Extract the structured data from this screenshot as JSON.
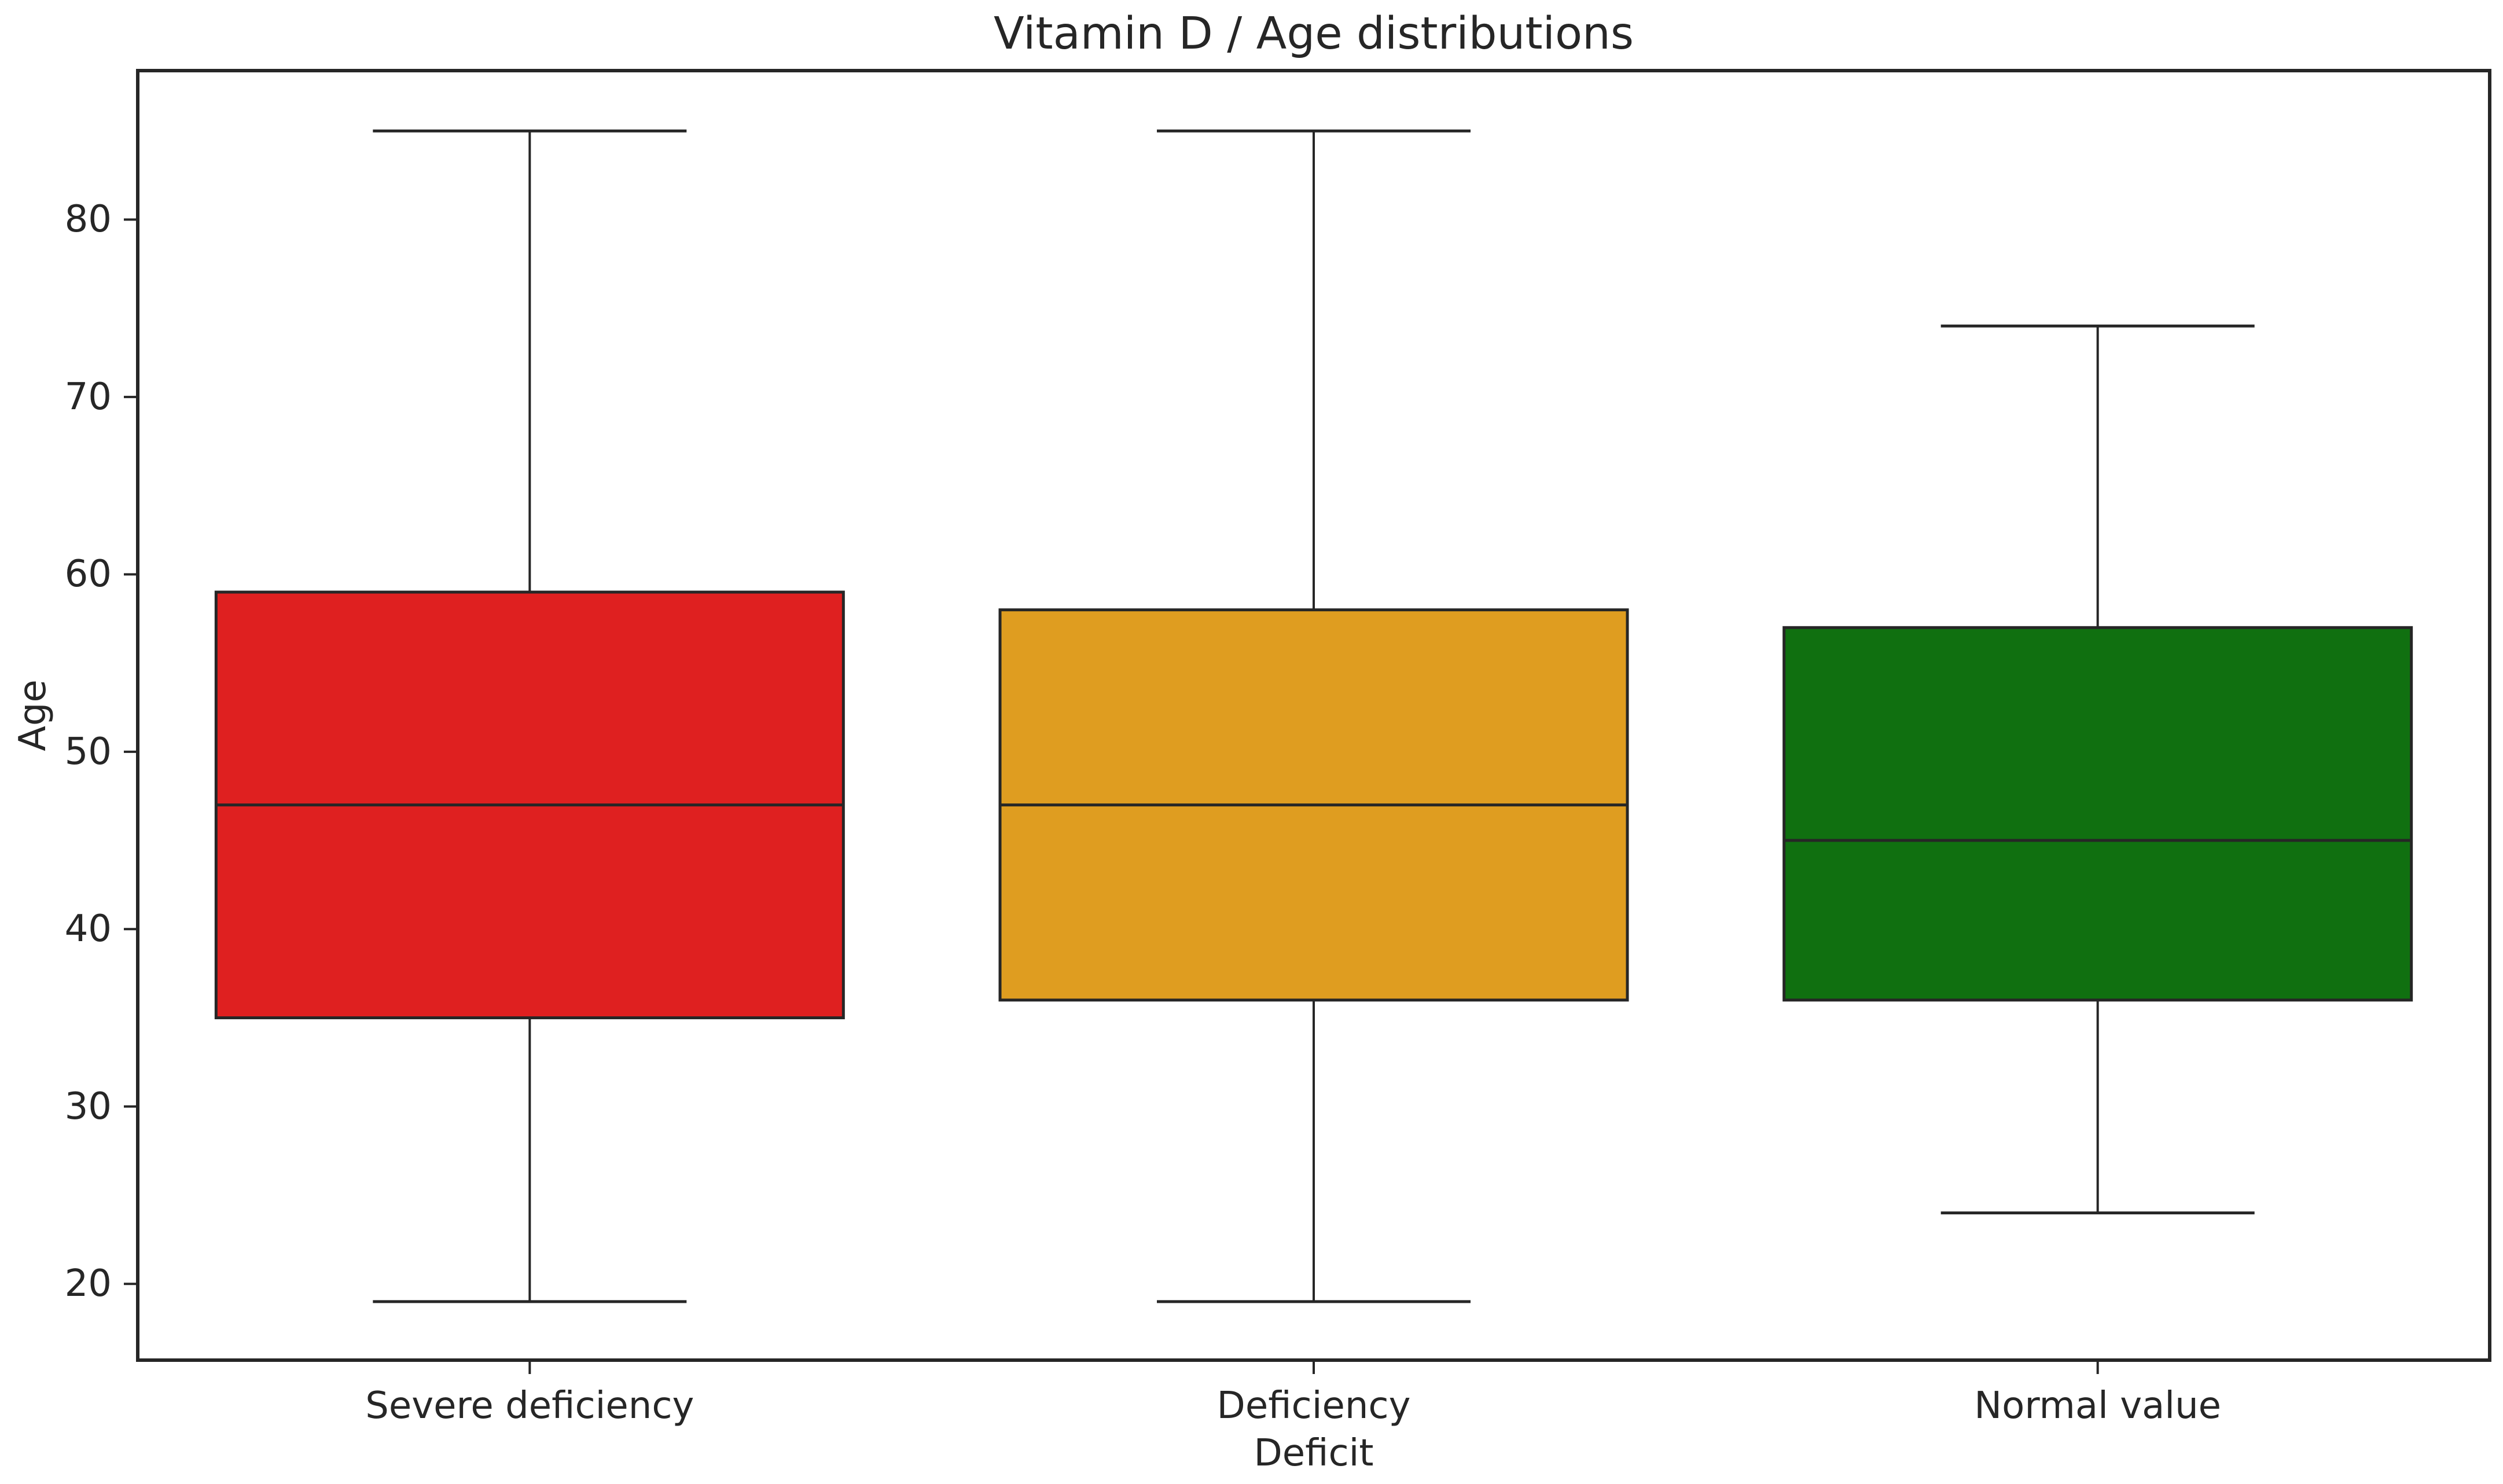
{
  "chart_data": {
    "type": "box",
    "title": "Vitamin D / Age distributions",
    "xlabel": "Deficit",
    "ylabel": "Age",
    "categories": [
      "Severe deficiency",
      "Deficiency",
      "Normal value"
    ],
    "boxes": [
      {
        "category": "Severe deficiency",
        "min": 19,
        "q1": 35,
        "median": 47,
        "q3": 59,
        "max": 85,
        "fill_color": "#df2020"
      },
      {
        "category": "Deficiency",
        "min": 19,
        "q1": 36,
        "median": 47,
        "q3": 58,
        "max": 85,
        "fill_color": "#df9d20"
      },
      {
        "category": "Normal value",
        "min": 24,
        "q1": 36,
        "median": 45,
        "q3": 57,
        "max": 74,
        "fill_color": "#107010"
      }
    ],
    "yticks": [
      20,
      30,
      40,
      50,
      60,
      70,
      80
    ],
    "ylim": [
      15.7,
      88.4
    ],
    "grid": false,
    "legend": "none",
    "line_color": "#262626",
    "background_color": "#ffffff"
  }
}
